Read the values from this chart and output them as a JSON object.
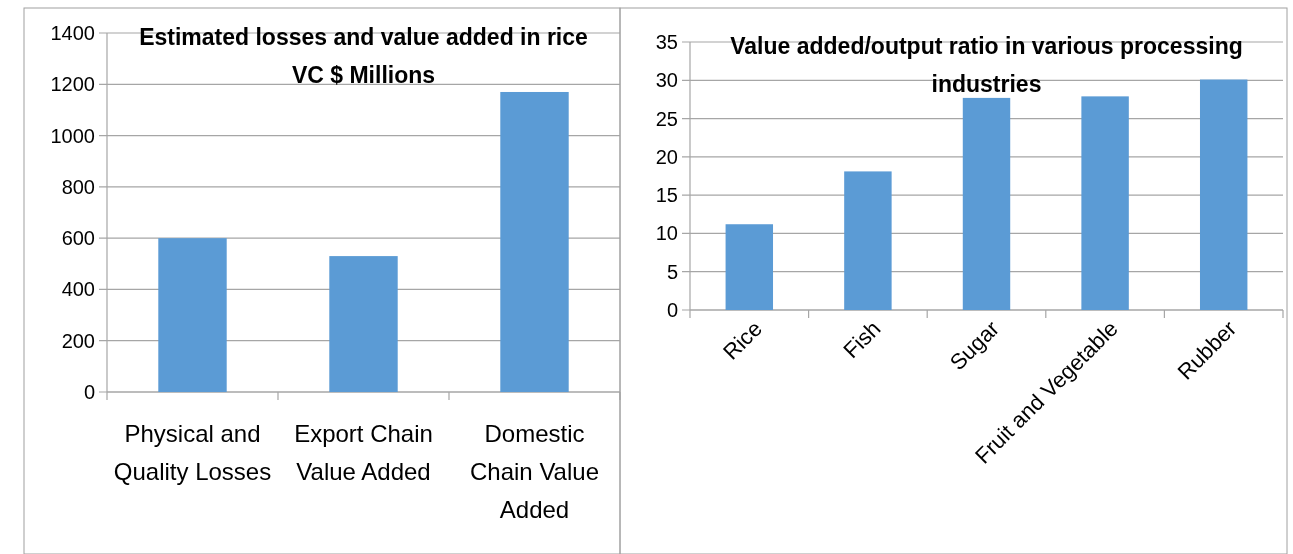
{
  "chart_data": [
    {
      "type": "bar",
      "title": "Estimated losses and value added in rice VC $ Millions",
      "categories": [
        "Physical and Quality Losses",
        "Export Chain Value Added",
        "Domestic Chain Value Added"
      ],
      "values": [
        600,
        530,
        1170
      ],
      "color": "#5b9bd5",
      "ylim": [
        0,
        1400
      ],
      "yticks": [
        0,
        200,
        400,
        600,
        800,
        1000,
        1200,
        1400
      ],
      "grid": "y"
    },
    {
      "type": "bar",
      "title": "Value added/output ratio in various processing industries",
      "categories": [
        "Rice",
        "Fish",
        "Sugar",
        "Fruit and Vegetable",
        "Rubber"
      ],
      "values": [
        11.2,
        18.1,
        27.7,
        27.9,
        30.1
      ],
      "color": "#5b9bd5",
      "ylim": [
        0,
        35
      ],
      "yticks": [
        0,
        5,
        10,
        15,
        20,
        25,
        30,
        35
      ],
      "grid": "y"
    }
  ]
}
